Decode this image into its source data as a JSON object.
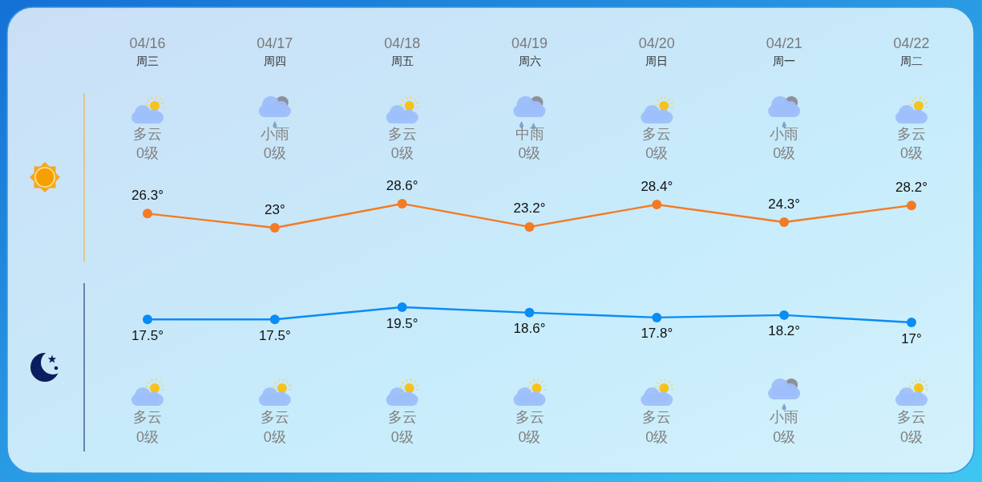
{
  "chart_data": [
    {
      "type": "line",
      "categories": [
        "04/16\n周三",
        "04/17\n周四",
        "04/18\n周五",
        "04/19\n周六",
        "04/20\n周日",
        "04/21\n周一",
        "04/22\n周二"
      ],
      "series": [
        {
          "color": "#f47a24",
          "values": [
            26.3,
            23,
            28.6,
            23.2,
            28.4,
            24.3,
            28.2
          ],
          "value_labels": [
            "26.3°",
            "23°",
            "28.6°",
            "23.2°",
            "28.4°",
            "24.3°",
            "28.2°"
          ]
        }
      ],
      "annotations": [
        "多云",
        "小雨",
        "多云",
        "中雨",
        "多云",
        "小雨",
        "多云",
        "0级",
        "0级",
        "0级",
        "0级",
        "0级",
        "0级",
        "0级"
      ],
      "marker": "circle",
      "tick_labels": "x"
    },
    {
      "type": "line",
      "categories": [
        null,
        null,
        null,
        null,
        null,
        null,
        null
      ],
      "series": [
        {
          "color": "#0a8cf5",
          "values": [
            17.5,
            17.5,
            19.5,
            18.6,
            17.8,
            18.2,
            17
          ],
          "value_labels": [
            "17.5°",
            "17.5°",
            "19.5°",
            "18.6°",
            "17.8°",
            "18.2°",
            "17°"
          ]
        }
      ],
      "annotations": [
        "多云",
        "多云",
        "多云",
        "多云",
        "多云",
        "小雨",
        "多云",
        "0级",
        "0级",
        "0级",
        "0级",
        "0级",
        "0级",
        "0级"
      ],
      "marker": "circle"
    }
  ]
}
